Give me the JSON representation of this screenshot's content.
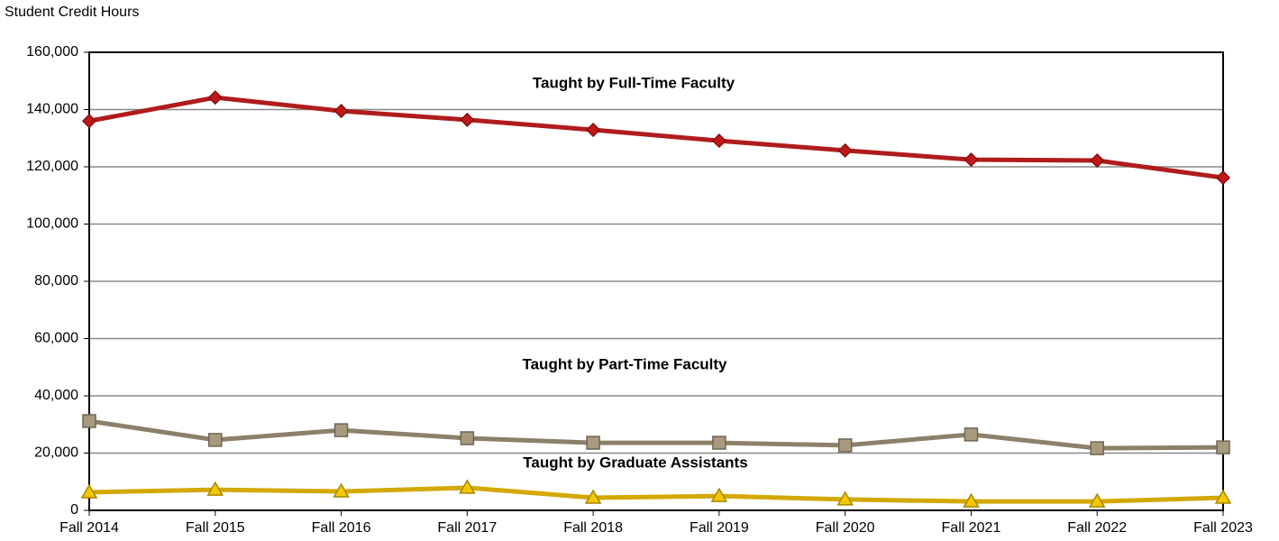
{
  "chart_data": {
    "type": "line",
    "y_axis_label": "Student Credit Hours",
    "categories": [
      "Fall 2014",
      "Fall 2015",
      "Fall 2016",
      "Fall 2017",
      "Fall 2018",
      "Fall 2019",
      "Fall 2020",
      "Fall 2021",
      "Fall 2022",
      "Fall 2023"
    ],
    "series": [
      {
        "name": "Taught by Full-Time Faculty",
        "color": "#b01c1c",
        "marker": "diamond",
        "values": [
          136000,
          144200,
          139500,
          136400,
          132900,
          129100,
          125700,
          122500,
          122200,
          116200
        ]
      },
      {
        "name": "Taught by Part-Time Faculty",
        "color": "#8c8069",
        "marker": "square",
        "values": [
          31200,
          24600,
          28000,
          25200,
          23600,
          23600,
          22700,
          26500,
          21700,
          22000
        ]
      },
      {
        "name": "Taught by Graduate Assistants",
        "color": "#d4a800",
        "marker": "triangle",
        "values": [
          6300,
          7200,
          6600,
          7900,
          4400,
          5000,
          3800,
          3100,
          3100,
          4400
        ]
      }
    ],
    "ylim": [
      0,
      160000
    ],
    "yticks": [
      0,
      {
        "value": 20000,
        "label": "20,000"
      },
      {
        "value": 40000,
        "label": "40,000"
      },
      {
        "value": 60000,
        "label": "60,000"
      },
      {
        "value": 80000,
        "label": "80,000"
      },
      {
        "value": 100000,
        "label": "100,000"
      },
      {
        "value": 120000,
        "label": "120,000"
      },
      {
        "value": 140000,
        "label": "140,000"
      },
      {
        "value": 160000,
        "label": "160,000"
      }
    ],
    "grid": true
  }
}
